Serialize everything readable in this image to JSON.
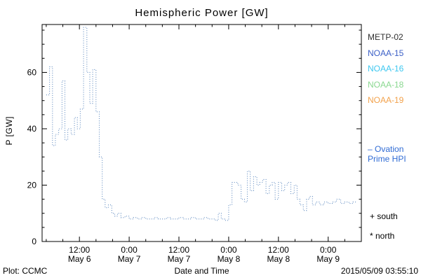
{
  "window": {
    "title": "Hemispheric Power [GW]"
  },
  "axes": {
    "y_label": "P [GW]",
    "x_label": "Date and Time"
  },
  "footer": {
    "plot_credit": "Plot: CCMC",
    "timestamp": "2015/05/09 03:55:10"
  },
  "legend": {
    "satellites": [
      {
        "label": "METP-02",
        "color": "#303030"
      },
      {
        "label": "NOAA-15",
        "color": "#3b5fc6"
      },
      {
        "label": "NOAA-16",
        "color": "#3fc8f0"
      },
      {
        "label": "NOAA-18",
        "color": "#8ad890"
      },
      {
        "label": "NOAA-19",
        "color": "#f2a24c"
      }
    ],
    "line_series": {
      "line1": "– Ovation",
      "line2": "Prime HPI",
      "color": "#2f6bd4"
    },
    "south_marker": "+ south",
    "north_marker": "* north"
  },
  "chart_data": {
    "type": "line",
    "style": "dotted-step",
    "title": "Hemispheric Power [GW]",
    "xlabel": "Date and Time",
    "ylabel": "P [GW]",
    "line_color": "#5f8ac0",
    "xlim_hours_from_may6": [
      3,
      80
    ],
    "ylim": [
      0,
      77
    ],
    "y_ticks": [
      0,
      20,
      40,
      60
    ],
    "y_minor_step": 5,
    "x_minor_step": 4,
    "x_ticks": [
      {
        "h": 12,
        "time": "12:00",
        "date": "May 6"
      },
      {
        "h": 24,
        "time": "0:00",
        "date": "May 7"
      },
      {
        "h": 36,
        "time": "12:00",
        "date": "May 7"
      },
      {
        "h": 48,
        "time": "0:00",
        "date": "May 8"
      },
      {
        "h": 60,
        "time": "12:00",
        "date": "May 8"
      },
      {
        "h": 72,
        "time": "0:00",
        "date": "May 9"
      }
    ],
    "points_hours_gw": [
      [
        4.0,
        52
      ],
      [
        4.8,
        62
      ],
      [
        5.5,
        34
      ],
      [
        6.2,
        38
      ],
      [
        7.0,
        40
      ],
      [
        7.8,
        57
      ],
      [
        8.5,
        36
      ],
      [
        9.2,
        40
      ],
      [
        10.0,
        38
      ],
      [
        10.8,
        44
      ],
      [
        11.5,
        40
      ],
      [
        12.2,
        47
      ],
      [
        13.0,
        76
      ],
      [
        13.8,
        60
      ],
      [
        14.5,
        49
      ],
      [
        15.2,
        61
      ],
      [
        16.0,
        46
      ],
      [
        16.8,
        30
      ],
      [
        17.5,
        15
      ],
      [
        18.2,
        12
      ],
      [
        19.0,
        13
      ],
      [
        19.8,
        10
      ],
      [
        20.5,
        9
      ],
      [
        21.2,
        10
      ],
      [
        22.0,
        8.5
      ],
      [
        23.0,
        9
      ],
      [
        24.0,
        8
      ],
      [
        25,
        8.5
      ],
      [
        26,
        8
      ],
      [
        27,
        8.5
      ],
      [
        28,
        8
      ],
      [
        29,
        8
      ],
      [
        30,
        8.5
      ],
      [
        31,
        8
      ],
      [
        32,
        8
      ],
      [
        33,
        8.5
      ],
      [
        34,
        8
      ],
      [
        35,
        8
      ],
      [
        36,
        8.5
      ],
      [
        37,
        8
      ],
      [
        38,
        8
      ],
      [
        39,
        8.5
      ],
      [
        40,
        8
      ],
      [
        41,
        8
      ],
      [
        42,
        8.5
      ],
      [
        43,
        8
      ],
      [
        44,
        8
      ],
      [
        44.8,
        7.5
      ],
      [
        45.5,
        10
      ],
      [
        46.2,
        8
      ],
      [
        47.0,
        7.5
      ],
      [
        48.0,
        13
      ],
      [
        48.8,
        21
      ],
      [
        49.5,
        21
      ],
      [
        50.2,
        20
      ],
      [
        51.0,
        15
      ],
      [
        51.8,
        14
      ],
      [
        52.5,
        25
      ],
      [
        53.2,
        18
      ],
      [
        54.0,
        23
      ],
      [
        54.8,
        20
      ],
      [
        55.5,
        21
      ],
      [
        56.2,
        22
      ],
      [
        57.0,
        17
      ],
      [
        57.8,
        20
      ],
      [
        58.5,
        21
      ],
      [
        59.2,
        15
      ],
      [
        60.0,
        21
      ],
      [
        60.8,
        18
      ],
      [
        61.5,
        20
      ],
      [
        62.2,
        21
      ],
      [
        63.0,
        17
      ],
      [
        63.8,
        20
      ],
      [
        64.5,
        15
      ],
      [
        65.2,
        13
      ],
      [
        66.0,
        11
      ],
      [
        66.8,
        15
      ],
      [
        67.5,
        16
      ],
      [
        68.2,
        13
      ],
      [
        69.0,
        14
      ],
      [
        70,
        13
      ],
      [
        71,
        14
      ],
      [
        72,
        13.5
      ],
      [
        73,
        14
      ],
      [
        74,
        15
      ],
      [
        75,
        13.5
      ],
      [
        76,
        14
      ],
      [
        77,
        13.5
      ],
      [
        78,
        14
      ]
    ]
  }
}
